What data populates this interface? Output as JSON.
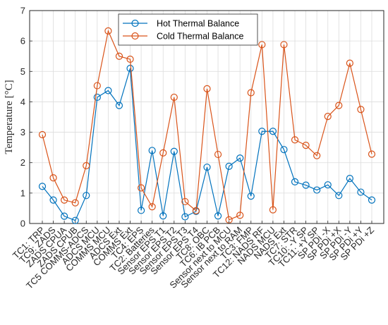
{
  "chart_data": {
    "type": "line",
    "title": "",
    "xlabel": "",
    "ylabel": "Temperature [°C]",
    "ylim": [
      0,
      7
    ],
    "yticks": [
      0,
      1,
      2,
      3,
      4,
      5,
      6,
      7
    ],
    "grid": true,
    "legend_position": "top-center",
    "categories": [
      "TC1: TRP",
      "TC9: ZADS",
      "ZADS CPUA",
      "ZADS CPUB",
      "TC5 COMMS-ADCS",
      "ADCS MCU",
      "COMMS MCU",
      "ADCS Ext",
      "COMMS Ext",
      "TC4: EPS",
      "TC2: Batteries",
      "Sensor EPS T1",
      "Sensor EPS T2",
      "Sensor EPS T3",
      "Sensor EPS T4",
      "TC8: OBC",
      "TC6: IB PCB",
      "Sensor next to MCU",
      "Sensor next to RAM",
      "TC3: FMP",
      "TC12: NADS RF",
      "NADS MCU",
      "NADS Ext",
      "TC7: STR",
      "TC10: -Y SP",
      "TC11: +Y SP",
      "SP PDi -X",
      "SP PDi +X",
      "SP PDi -Y",
      "SP PDi +Y",
      "SP PDi +Z"
    ],
    "series": [
      {
        "name": "Hot Thermal Balance",
        "color": "#0072BD",
        "values": [
          1.22,
          0.77,
          0.24,
          0.1,
          0.92,
          4.15,
          4.37,
          3.88,
          5.1,
          0.43,
          2.4,
          0.25,
          2.37,
          0.22,
          0.4,
          1.85,
          0.25,
          1.88,
          2.15,
          0.9,
          3.03,
          3.03,
          2.43,
          1.37,
          1.26,
          1.1,
          1.27,
          0.92,
          1.48,
          1.03,
          0.77
        ]
      },
      {
        "name": "Cold Thermal Balance",
        "color": "#D95319",
        "values": [
          2.92,
          1.5,
          0.77,
          0.68,
          1.9,
          4.53,
          6.33,
          5.5,
          5.4,
          1.17,
          0.55,
          2.32,
          4.15,
          0.72,
          0.42,
          4.43,
          2.27,
          0.12,
          0.27,
          4.3,
          5.88,
          0.45,
          5.88,
          2.75,
          2.57,
          2.23,
          3.52,
          3.88,
          5.27,
          3.75,
          2.28
        ]
      }
    ]
  }
}
